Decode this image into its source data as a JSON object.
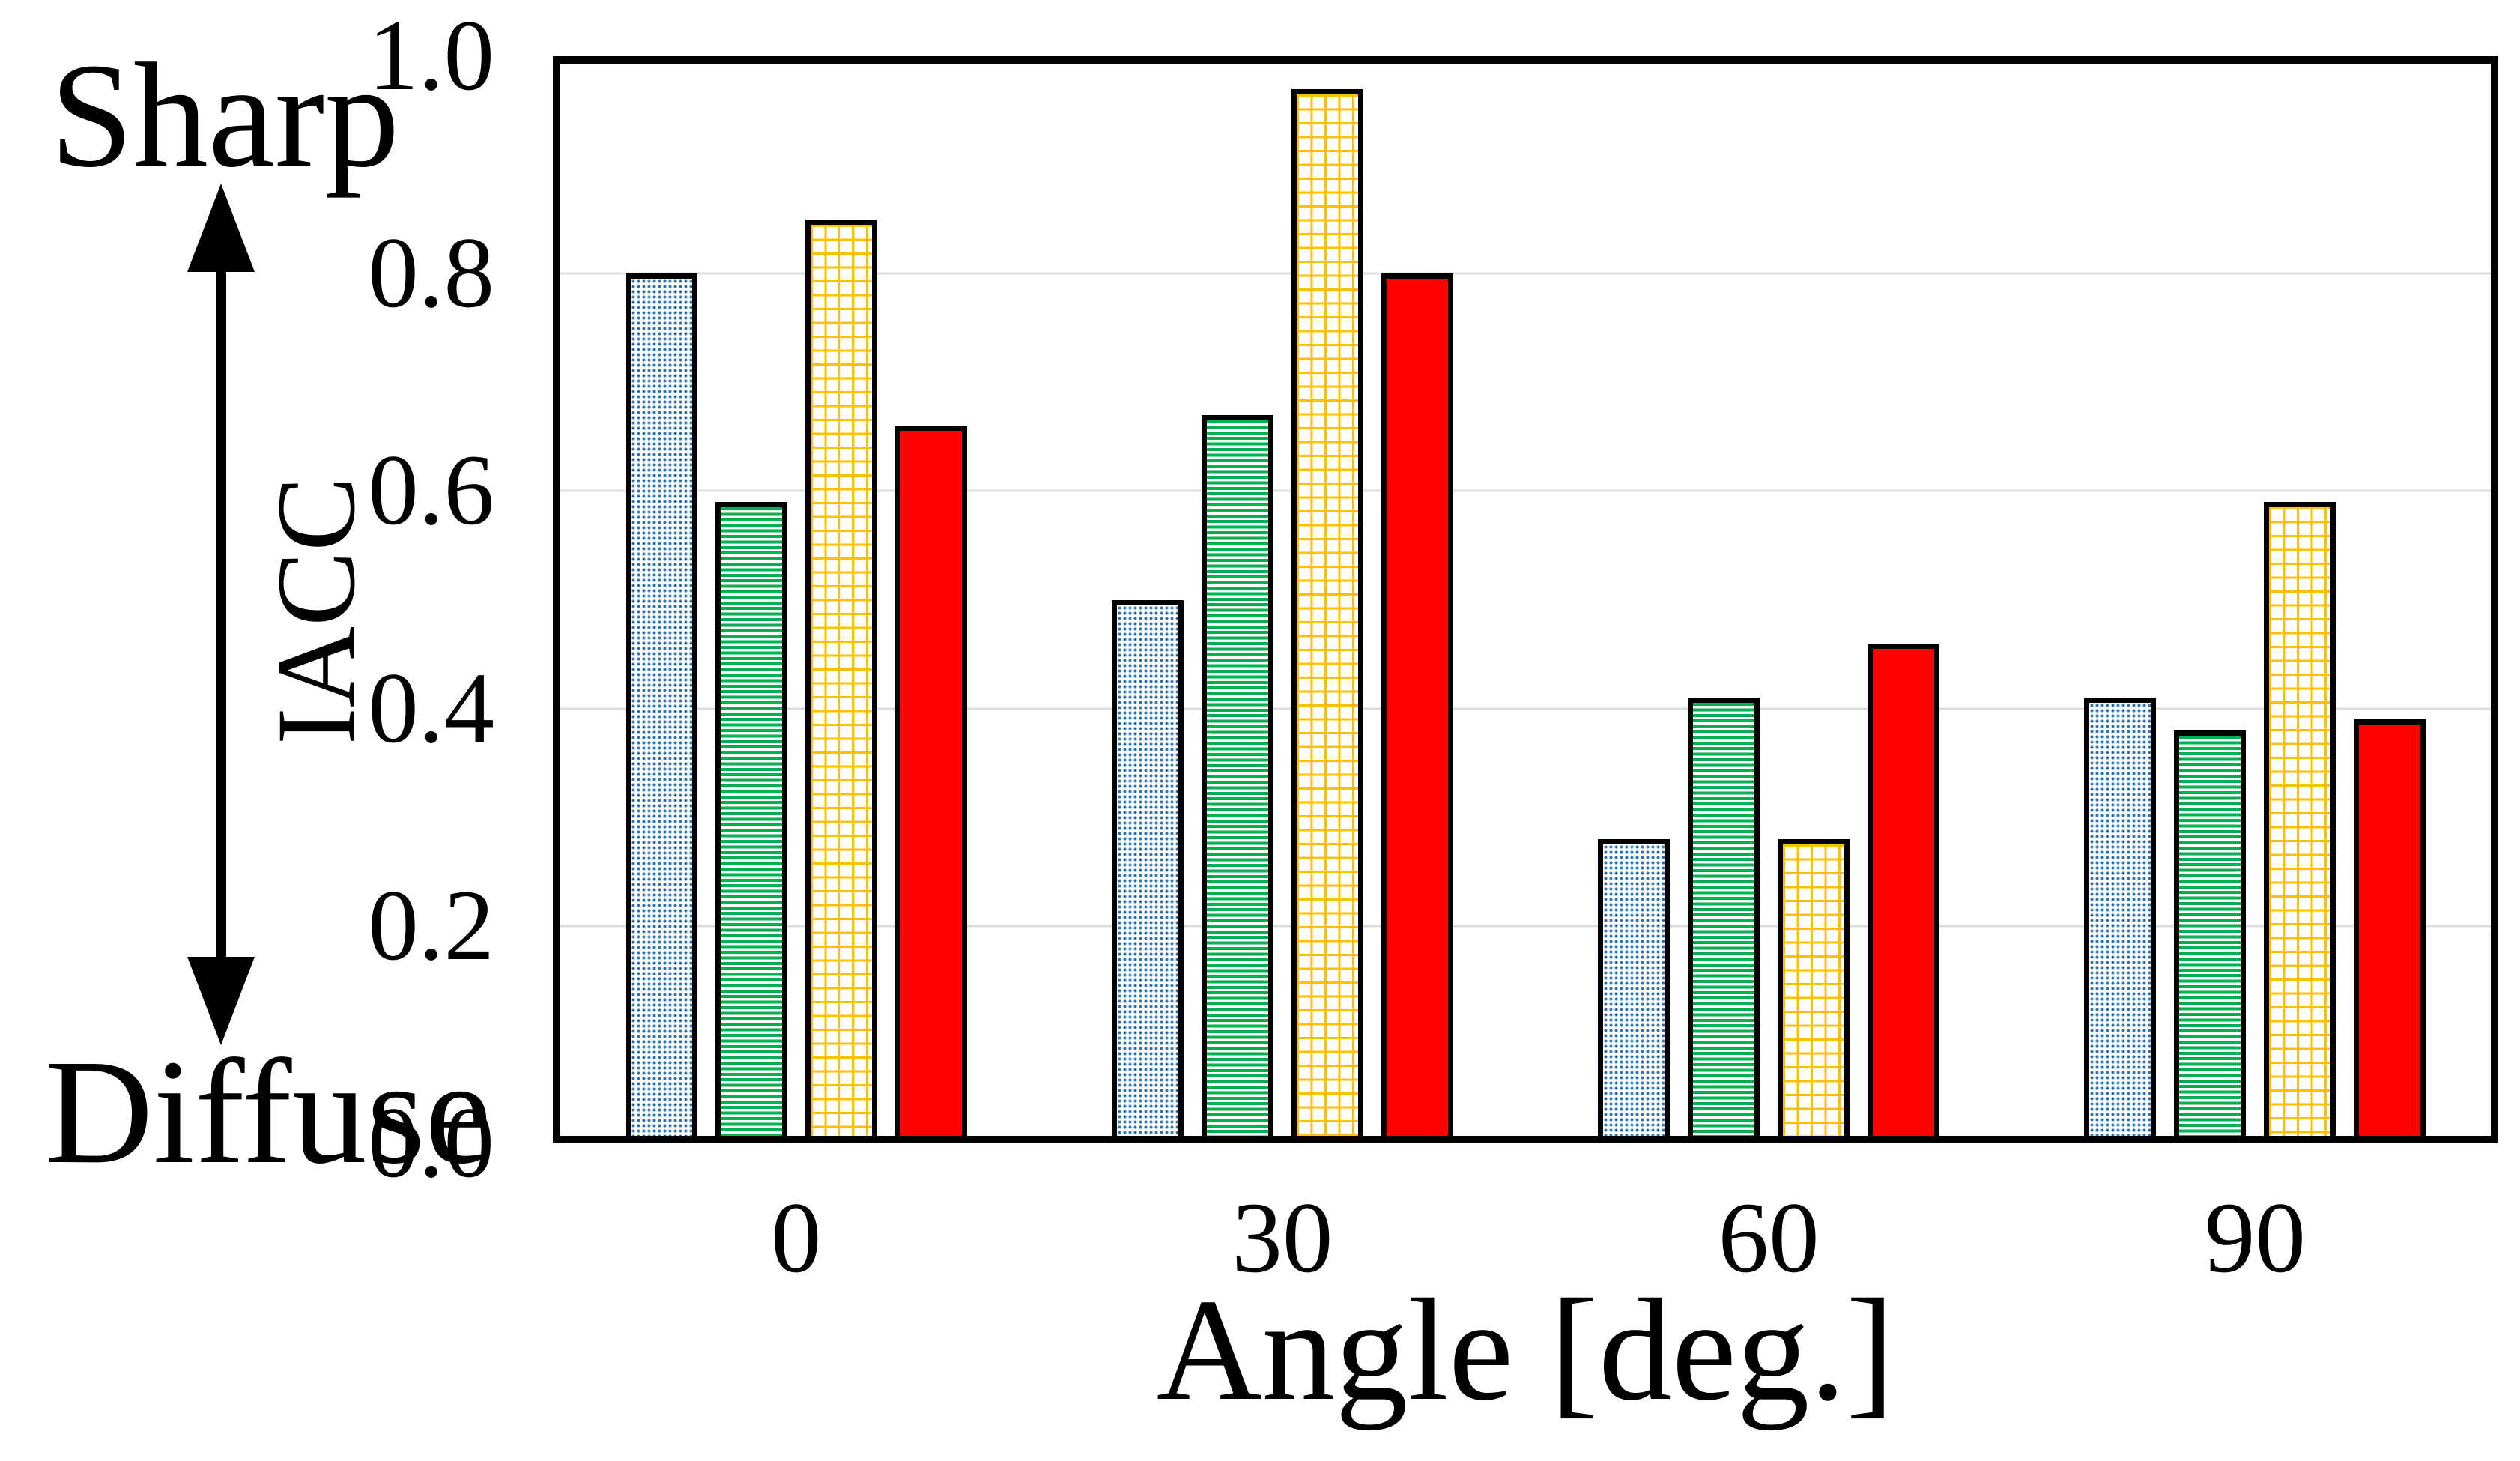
{
  "chart_data": {
    "type": "bar",
    "title": "",
    "xlabel": "Angle [deg.]",
    "ylabel": "IACC",
    "categories": [
      "0",
      "30",
      "60",
      "90"
    ],
    "series": [
      {
        "name": "blue-dotted",
        "pattern": "dots",
        "color": "#2E75B6",
        "values": [
          0.8,
          0.5,
          0.28,
          0.41
        ]
      },
      {
        "name": "green-striped",
        "pattern": "horizontal-stripes",
        "color": "#00B050",
        "values": [
          0.59,
          0.67,
          0.41,
          0.38
        ]
      },
      {
        "name": "yellow-grid",
        "pattern": "grid",
        "color": "#FFC000",
        "values": [
          0.85,
          0.97,
          0.28,
          0.59
        ]
      },
      {
        "name": "red-solid",
        "pattern": "solid",
        "color": "#FF0000",
        "values": [
          0.66,
          0.8,
          0.46,
          0.39
        ]
      }
    ],
    "ylim": [
      0.0,
      1.0
    ],
    "yticks": [
      0.0,
      0.2,
      0.4,
      0.6,
      0.8,
      1.0
    ],
    "ytick_labels": [
      "0.0",
      "0.2",
      "0.4",
      "0.6",
      "0.8",
      "1.0"
    ],
    "grid": true,
    "gridline_color": "#DCDCDC",
    "legend": "none",
    "annotations": {
      "high": "Sharp",
      "low": "Diffuse"
    }
  }
}
